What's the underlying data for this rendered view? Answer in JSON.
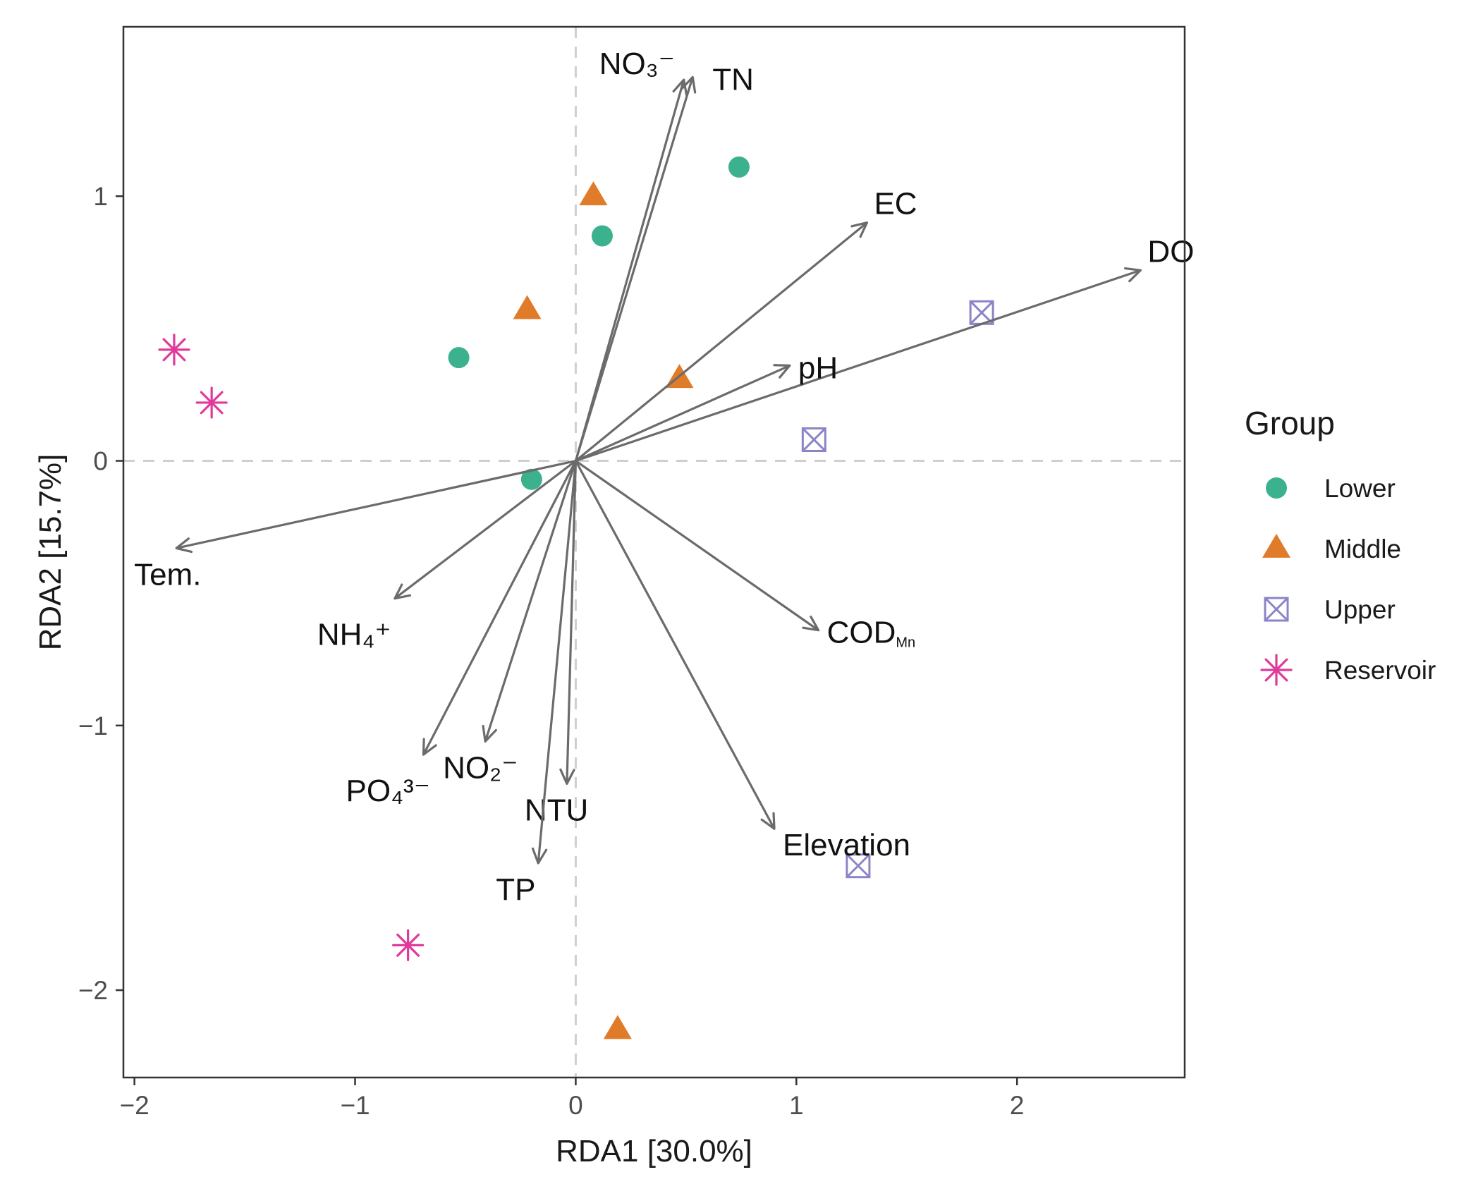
{
  "chart_data": {
    "type": "scatter",
    "subtype": "rda-biplot",
    "xlabel": "RDA1 [30.0%]",
    "ylabel": "RDA2 [15.7%]",
    "xlim": [
      -2.05,
      2.76
    ],
    "ylim": [
      -2.33,
      1.64
    ],
    "xticks": [
      -2,
      -1,
      0,
      1,
      2
    ],
    "yticks": [
      -2,
      -1,
      0,
      1
    ],
    "reference_lines": {
      "x": 0,
      "y": 0,
      "style": "dashed"
    },
    "grid": false,
    "legend": {
      "title": "Group",
      "position": "right",
      "entries": [
        {
          "name": "Lower",
          "shape": "circle",
          "color": "#3BB18E"
        },
        {
          "name": "Middle",
          "shape": "triangle",
          "color": "#E07B2A"
        },
        {
          "name": "Upper",
          "shape": "boxcross",
          "color": "#8A84C8"
        },
        {
          "name": "Reservoir",
          "shape": "asterisk",
          "color": "#E0399A"
        }
      ]
    },
    "series": [
      {
        "name": "Lower",
        "points": [
          [
            0.74,
            1.11
          ],
          [
            0.12,
            0.85
          ],
          [
            -0.53,
            0.39
          ],
          [
            -0.2,
            -0.07
          ]
        ]
      },
      {
        "name": "Middle",
        "points": [
          [
            0.08,
            1.0
          ],
          [
            -0.22,
            0.57
          ],
          [
            0.47,
            0.31
          ],
          [
            0.19,
            -2.15
          ]
        ]
      },
      {
        "name": "Upper",
        "points": [
          [
            1.84,
            0.56
          ],
          [
            1.08,
            0.08
          ],
          [
            1.28,
            -1.53
          ]
        ]
      },
      {
        "name": "Reservoir",
        "points": [
          [
            -1.82,
            0.42
          ],
          [
            -1.65,
            0.22
          ],
          [
            -0.76,
            -1.83
          ]
        ]
      }
    ],
    "vectors": [
      {
        "name": "NO₃⁻",
        "x": 0.49,
        "y": 1.44,
        "label_anchor": "left-top"
      },
      {
        "name": "TN",
        "x": 0.53,
        "y": 1.45,
        "label_anchor": "right-top"
      },
      {
        "name": "EC",
        "x": 1.32,
        "y": 0.9,
        "label_anchor": "upper-right"
      },
      {
        "name": "DO",
        "x": 2.56,
        "y": 0.72,
        "label_anchor": "upper-right"
      },
      {
        "name": "pH",
        "x": 0.97,
        "y": 0.36,
        "label_anchor": "right"
      },
      {
        "name": "Tem.",
        "x": -1.81,
        "y": -0.33,
        "label_anchor": "below"
      },
      {
        "name": "NH₄⁺",
        "x": -0.82,
        "y": -0.52,
        "label_anchor": "below-left"
      },
      {
        "name": "COD",
        "subscript": "Mn",
        "x": 1.1,
        "y": -0.64,
        "label_anchor": "right"
      },
      {
        "name": "PO₄³⁻",
        "x": -0.69,
        "y": -1.11,
        "label_anchor": "below-left"
      },
      {
        "name": "NO₂⁻",
        "x": -0.41,
        "y": -1.06,
        "label_anchor": "below"
      },
      {
        "name": "NTU",
        "x": -0.04,
        "y": -1.22,
        "label_anchor": "below"
      },
      {
        "name": "TP",
        "x": -0.17,
        "y": -1.52,
        "label_anchor": "below"
      },
      {
        "name": "Elevation",
        "x": 0.9,
        "y": -1.39,
        "label_anchor": "right-below"
      }
    ]
  }
}
